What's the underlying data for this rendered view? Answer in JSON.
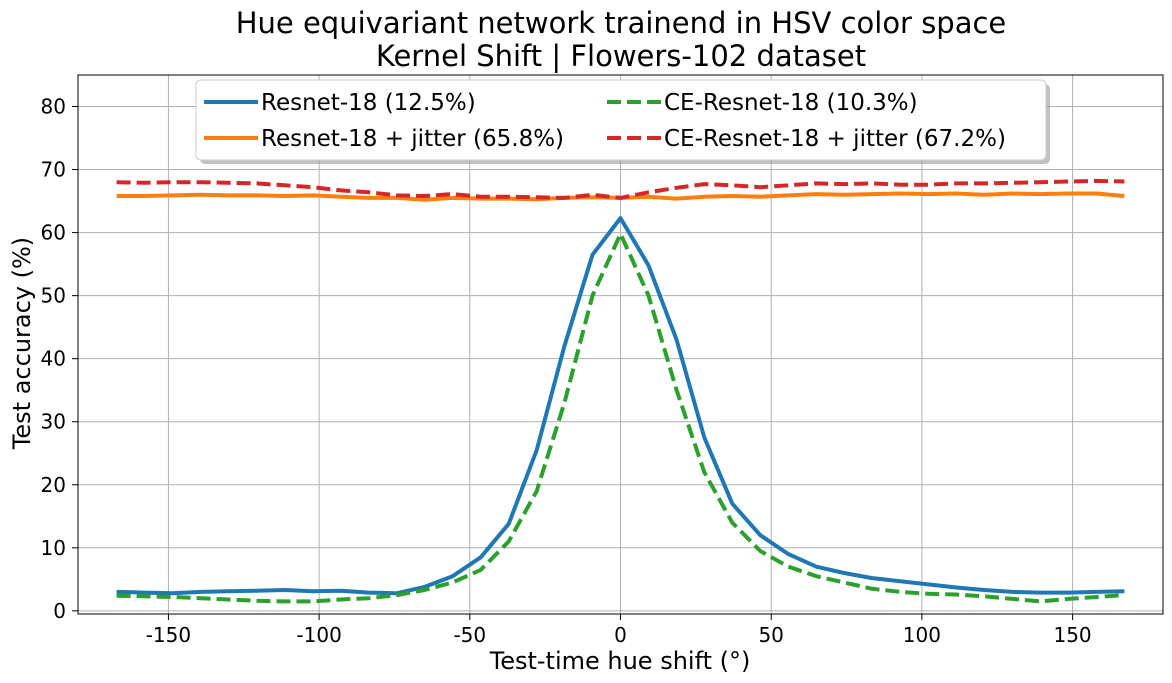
{
  "chart_data": {
    "type": "line",
    "title": "Hue equivariant network trainend in HSV color space",
    "subtitle": "Kernel Shift | Flowers-102 dataset",
    "xlabel": "Test-time hue shift (°)",
    "ylabel": "Test accuracy (%)",
    "xlim": [
      -180,
      180
    ],
    "ylim": [
      -0.5,
      85
    ],
    "xticks": [
      -150,
      -100,
      -50,
      0,
      50,
      100,
      150
    ],
    "yticks": [
      0,
      10,
      20,
      30,
      40,
      50,
      60,
      70,
      80
    ],
    "grid": true,
    "legend_position": "top-center",
    "x": [
      -167.2,
      -157.9,
      -148.6,
      -139.3,
      -130.0,
      -120.7,
      -111.4,
      -102.1,
      -92.8,
      -83.5,
      -74.2,
      -65.0,
      -55.7,
      -46.4,
      -37.1,
      -27.8,
      -18.6,
      -9.3,
      0,
      9.3,
      18.6,
      27.8,
      37.1,
      46.4,
      55.7,
      65.0,
      74.2,
      83.5,
      92.8,
      102.1,
      111.4,
      120.7,
      130.0,
      139.3,
      148.6,
      157.9,
      167.2
    ],
    "series": [
      {
        "name": "Resnet-18 (12.5%)",
        "color": "#1f77b4",
        "style": "solid",
        "values": [
          3.0,
          2.9,
          2.8,
          3.0,
          3.1,
          3.2,
          3.3,
          3.1,
          3.2,
          2.9,
          2.8,
          3.8,
          5.5,
          8.5,
          13.8,
          25.5,
          42.0,
          56.5,
          62.3,
          54.8,
          43.0,
          27.5,
          17.0,
          12.0,
          9.0,
          7.0,
          6.0,
          5.2,
          4.7,
          4.2,
          3.7,
          3.3,
          3.0,
          2.9,
          2.9,
          3.0,
          3.1
        ]
      },
      {
        "name": "CE-Resnet-18 (10.3%)",
        "color": "#2ca02c",
        "style": "dashed",
        "values": [
          2.4,
          2.3,
          2.2,
          2.0,
          1.8,
          1.6,
          1.5,
          1.5,
          1.8,
          2.0,
          2.5,
          3.3,
          4.5,
          6.5,
          11.0,
          19.0,
          33.0,
          50.0,
          59.8,
          50.0,
          35.0,
          22.0,
          14.0,
          9.5,
          7.0,
          5.5,
          4.5,
          3.5,
          3.0,
          2.7,
          2.6,
          2.3,
          1.9,
          1.5,
          1.9,
          2.2,
          2.5
        ]
      },
      {
        "name": "Resnet-18 + jitter (65.8%)",
        "color": "#ff7f0e",
        "style": "solid",
        "values": [
          65.8,
          65.8,
          65.9,
          66.0,
          65.9,
          65.9,
          65.8,
          65.9,
          65.7,
          65.5,
          65.5,
          65.2,
          65.5,
          65.4,
          65.4,
          65.3,
          65.5,
          65.6,
          65.5,
          65.7,
          65.4,
          65.7,
          65.8,
          65.7,
          65.9,
          66.1,
          66.0,
          66.1,
          66.2,
          66.1,
          66.2,
          66.0,
          66.2,
          66.1,
          66.2,
          66.2,
          65.8
        ]
      },
      {
        "name": "CE-Resnet-18 + jitter (67.2%)",
        "color": "#d62728",
        "style": "dashed",
        "values": [
          68.0,
          67.9,
          68.0,
          68.0,
          67.9,
          67.8,
          67.5,
          67.2,
          66.7,
          66.4,
          65.9,
          65.8,
          66.1,
          65.7,
          65.7,
          65.6,
          65.5,
          66.0,
          65.5,
          66.4,
          67.1,
          67.7,
          67.5,
          67.2,
          67.5,
          67.8,
          67.7,
          67.8,
          67.6,
          67.6,
          67.8,
          67.8,
          67.9,
          68.0,
          68.1,
          68.2,
          68.1
        ]
      }
    ],
    "legend_order": [
      0,
      1,
      2,
      3
    ]
  }
}
